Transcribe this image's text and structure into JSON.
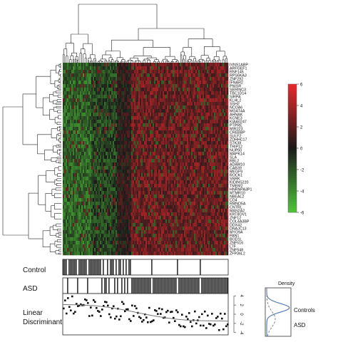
{
  "chart_data": {
    "type": "heatmap",
    "genes": [
      "IVNS1ABP",
      "ARFGEF1",
      "RNF145",
      "RPS6KA3",
      "ZNF292",
      "IFNAR2",
      "PNISR",
      "SERINC3",
      "TBC1D14",
      "SIRPA",
      "KLHL2",
      "SSH2",
      "NCOA6",
      "MGAT4A",
      "AHNAK",
      "KCNE3",
      "KIAA0247",
      "PTPRE",
      "MIR223",
      "CREBBP",
      "SULF2",
      "ZDHHC17",
      "STK38",
      "TRIP12",
      "NUP50",
      "MAPK14",
      "SLA",
      "RBL2",
      "ADAM10",
      "CAB39",
      "MEGF9",
      "ROCK1",
      "SNRK",
      "KIDINS220",
      "TMEM2",
      "HNRNPA3P1",
      "MTMR10",
      "NBEAL2",
      "CD4",
      "RMND5A",
      "CNTRL",
      "MAN2A2",
      "KRT8OV1",
      "ZNF12",
      "COL4A3BP",
      "DDX42",
      "DNAJC13",
      "MYO9A",
      "PAN1",
      "BOD1L",
      "ZNF516",
      "LTF",
      "ZNF548",
      "ZFP36L2"
    ],
    "color_scale": {
      "min": -6,
      "max": 6,
      "ticks": [
        6,
        4,
        2,
        0,
        -2,
        -4,
        -6
      ],
      "low_color": "#4fc43a",
      "mid_color": "#1a1a1a",
      "high_color": "#e8282c"
    },
    "tracks": [
      {
        "label": "Control"
      },
      {
        "label": "ASD"
      },
      {
        "label": "Linear Discriminant",
        "axis_ticks": [
          4,
          2,
          0,
          -2,
          -4
        ]
      }
    ],
    "density": {
      "title": "Density",
      "series": [
        {
          "label": "Controls",
          "line": "solid",
          "color": "#5b7fbf"
        },
        {
          "label": "ASD",
          "line": "dashed",
          "color": "#888888"
        }
      ]
    }
  }
}
